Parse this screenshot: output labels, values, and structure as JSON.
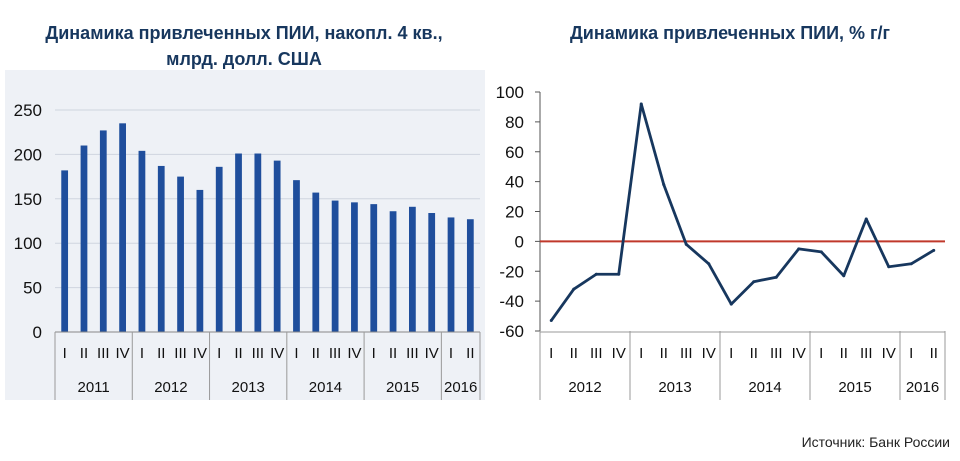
{
  "charts": {
    "left_title_line1": "Динамика привлеченных ПИИ, накопл. 4 кв.,",
    "left_title_line2": "млрд. долл. США",
    "right_title": "Динамика привлеченных ПИИ, % г/г",
    "source": "Источник: Банк России"
  },
  "chart_data": [
    {
      "type": "bar",
      "title": "Динамика привлеченных ПИИ, накопл. 4 кв., млрд. долл. США",
      "color": "#1f4e9c",
      "quarter_labels": [
        "I",
        "II",
        "III",
        "IV",
        "I",
        "II",
        "III",
        "IV",
        "I",
        "II",
        "III",
        "IV",
        "I",
        "II",
        "III",
        "IV",
        "I",
        "II",
        "III",
        "IV",
        "I",
        "II"
      ],
      "years": [
        {
          "label": "2011",
          "count": 4
        },
        {
          "label": "2012",
          "count": 4
        },
        {
          "label": "2013",
          "count": 4
        },
        {
          "label": "2014",
          "count": 4
        },
        {
          "label": "2015",
          "count": 4
        },
        {
          "label": "2016",
          "count": 2
        }
      ],
      "values": [
        182,
        210,
        227,
        235,
        204,
        187,
        175,
        160,
        186,
        201,
        201,
        193,
        171,
        157,
        148,
        146,
        144,
        136,
        141,
        134,
        129,
        127
      ],
      "ylim": [
        0,
        250
      ],
      "yticks": [
        0,
        50,
        100,
        150,
        200,
        250
      ],
      "grid": true
    },
    {
      "type": "line",
      "title": "Динамика привлеченных ПИИ, % г/г",
      "color": "#17375e",
      "zero_line_color": "#c0392b",
      "quarter_labels": [
        "I",
        "II",
        "III",
        "IV",
        "I",
        "II",
        "III",
        "IV",
        "I",
        "II",
        "III",
        "IV",
        "I",
        "II",
        "III",
        "IV",
        "I",
        "II"
      ],
      "years": [
        {
          "label": "2012",
          "count": 4
        },
        {
          "label": "2013",
          "count": 4
        },
        {
          "label": "2014",
          "count": 4
        },
        {
          "label": "2015",
          "count": 4
        },
        {
          "label": "2016",
          "count": 2
        }
      ],
      "values": [
        -53,
        -32,
        -22,
        -22,
        92,
        38,
        -2,
        -15,
        -42,
        -27,
        -24,
        -5,
        -7,
        -23,
        15,
        -17,
        -15,
        -6
      ],
      "ylim": [
        -60,
        100
      ],
      "yticks": [
        -60,
        -40,
        -20,
        0,
        20,
        40,
        60,
        80,
        100
      ],
      "grid": false
    }
  ]
}
